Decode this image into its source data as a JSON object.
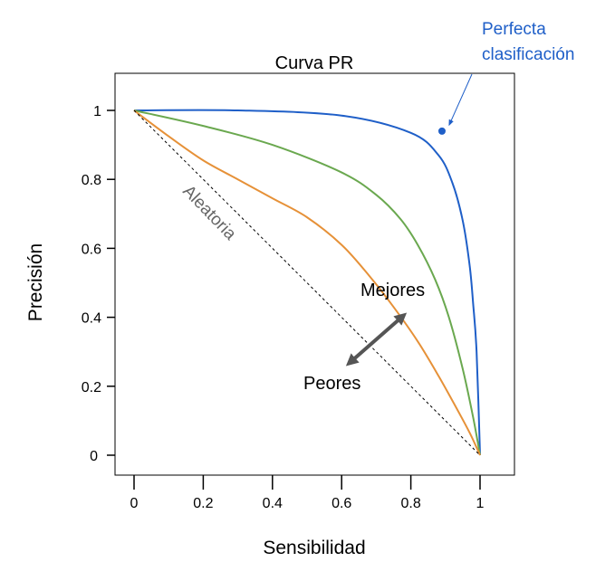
{
  "chart_data": {
    "type": "line",
    "title": "Curva PR",
    "xlabel": "Sensibilidad",
    "ylabel": "Precisión",
    "xlim": [
      0,
      1
    ],
    "ylim": [
      0,
      1
    ],
    "x_ticks": [
      {
        "value": 0,
        "label": "0"
      },
      {
        "value": 0.2,
        "label": "0.2"
      },
      {
        "value": 0.4,
        "label": "0.4"
      },
      {
        "value": 0.6,
        "label": "0.6"
      },
      {
        "value": 0.8,
        "label": "0.8"
      },
      {
        "value": 1,
        "label": "1"
      }
    ],
    "y_ticks": [
      {
        "value": 0,
        "label": "0"
      },
      {
        "value": 0.2,
        "label": "0.2"
      },
      {
        "value": 0.4,
        "label": "0.4"
      },
      {
        "value": 0.6,
        "label": "0.6"
      },
      {
        "value": 0.8,
        "label": "0.8"
      },
      {
        "value": 1,
        "label": "1"
      }
    ],
    "grid": false,
    "series": [
      {
        "color": "#1f5fc8",
        "x": [
          0,
          0.3,
          0.6,
          0.8,
          0.88,
          0.92,
          0.95,
          0.97,
          0.98,
          0.99,
          1.0
        ],
        "y": [
          1.0,
          1.0,
          0.985,
          0.935,
          0.87,
          0.79,
          0.68,
          0.55,
          0.44,
          0.3,
          0.0
        ]
      },
      {
        "color": "#6aa84f",
        "x": [
          0,
          0.2,
          0.4,
          0.6,
          0.7,
          0.77,
          0.82,
          0.87,
          0.91,
          0.95,
          0.98,
          1.0
        ],
        "y": [
          1.0,
          0.955,
          0.9,
          0.82,
          0.755,
          0.685,
          0.61,
          0.51,
          0.4,
          0.25,
          0.11,
          0.0
        ]
      },
      {
        "color": "#e69138",
        "x": [
          0,
          0.1,
          0.2,
          0.3,
          0.4,
          0.5,
          0.6,
          0.68,
          0.75,
          0.82,
          0.88,
          0.93,
          0.97,
          1.0
        ],
        "y": [
          1.0,
          0.925,
          0.855,
          0.8,
          0.745,
          0.69,
          0.61,
          0.52,
          0.43,
          0.33,
          0.23,
          0.14,
          0.065,
          0.0
        ]
      },
      {
        "style": "dashed",
        "color": "#000000",
        "x": [
          0,
          1
        ],
        "y": [
          1.0,
          0.0
        ]
      }
    ],
    "points": [
      {
        "x": 0.89,
        "y": 0.94,
        "color": "#1f5fc8"
      }
    ],
    "annotations": {
      "perfect_line1": "Perfecta",
      "perfect_line2": "clasificación",
      "random": "Aleatoria",
      "better": "Mejores",
      "worse": "Peores"
    }
  }
}
